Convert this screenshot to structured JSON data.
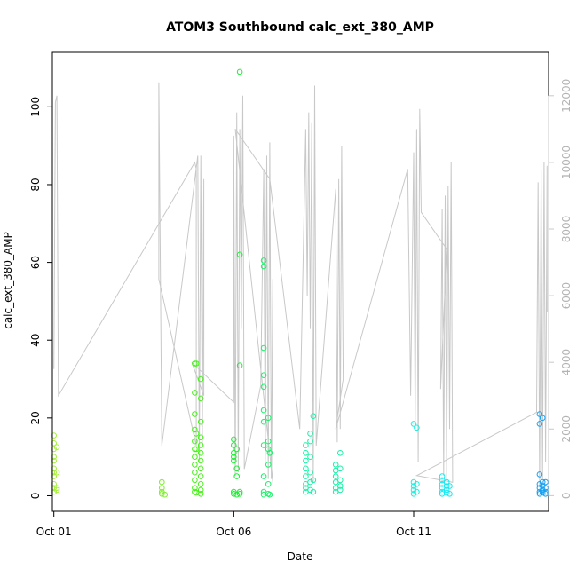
{
  "chart_data": {
    "type": "scatter",
    "title": "ATOM3 Southbound calc_ext_380_AMP",
    "xlabel": "Date",
    "ylabel": "calc_ext_380_AMP",
    "x_axis_type": "date",
    "xlim": [
      "2012-09-30T23:00",
      "2012-10-14T18:00"
    ],
    "x_ticks": [
      {
        "value": "2012-10-01T00:00",
        "label": "Oct 01"
      },
      {
        "value": "2012-10-06T00:00",
        "label": "Oct 06"
      },
      {
        "value": "2012-10-11T00:00",
        "label": "Oct 11"
      }
    ],
    "ylim": [
      -4,
      114
    ],
    "y_ticks": [
      0,
      20,
      40,
      60,
      80,
      100
    ],
    "y2lim": [
      -470,
      13300
    ],
    "y2_ticks": [
      0,
      2000,
      4000,
      6000,
      8000,
      10000,
      12000
    ],
    "y2_color": "#c8c8c8",
    "line_color": "#c8c8c8",
    "grid": false,
    "legend": "none",
    "point_colors": [
      "#a8f03c",
      "#7cf02a",
      "#46f018",
      "#18f030",
      "#18f068",
      "#18f0a8",
      "#18f0e0",
      "#18e8f0",
      "#18a0f0"
    ],
    "points": [
      {
        "x": "2012-10-01T00:00",
        "y": 15.5,
        "c": 0
      },
      {
        "x": "2012-10-01T00:00",
        "y": 13.5,
        "c": 0
      },
      {
        "x": "2012-10-01T00:00",
        "y": 12,
        "c": 0
      },
      {
        "x": "2012-10-01T00:00",
        "y": 10,
        "c": 0
      },
      {
        "x": "2012-10-01T00:00",
        "y": 9,
        "c": 0
      },
      {
        "x": "2012-10-01T00:00",
        "y": 7,
        "c": 0
      },
      {
        "x": "2012-10-01T00:00",
        "y": 6,
        "c": 0
      },
      {
        "x": "2012-10-01T00:00",
        "y": 5,
        "c": 0
      },
      {
        "x": "2012-10-01T00:00",
        "y": 3,
        "c": 0
      },
      {
        "x": "2012-10-01T00:00",
        "y": 2,
        "c": 0
      },
      {
        "x": "2012-10-01T00:00",
        "y": 1,
        "c": 0
      },
      {
        "x": "2012-10-01T02:00",
        "y": 12.5,
        "c": 0
      },
      {
        "x": "2012-10-01T02:00",
        "y": 6,
        "c": 0
      },
      {
        "x": "2012-10-01T02:00",
        "y": 2,
        "c": 0
      },
      {
        "x": "2012-10-01T02:00",
        "y": 1.5,
        "c": 0
      },
      {
        "x": "2012-10-04T00:00",
        "y": 3.5,
        "c": 1
      },
      {
        "x": "2012-10-04T00:00",
        "y": 2,
        "c": 1
      },
      {
        "x": "2012-10-04T00:00",
        "y": 1,
        "c": 1
      },
      {
        "x": "2012-10-04T00:00",
        "y": 0.5,
        "c": 1
      },
      {
        "x": "2012-10-04T02:00",
        "y": 0.3,
        "c": 1
      },
      {
        "x": "2012-10-04T22:00",
        "y": 34,
        "c": 2
      },
      {
        "x": "2012-10-04T22:00",
        "y": 26.5,
        "c": 2
      },
      {
        "x": "2012-10-04T22:00",
        "y": 21,
        "c": 2
      },
      {
        "x": "2012-10-04T22:00",
        "y": 17,
        "c": 2
      },
      {
        "x": "2012-10-04T22:00",
        "y": 14,
        "c": 2
      },
      {
        "x": "2012-10-04T22:00",
        "y": 12,
        "c": 2
      },
      {
        "x": "2012-10-04T22:00",
        "y": 10,
        "c": 2
      },
      {
        "x": "2012-10-04T22:00",
        "y": 8,
        "c": 2
      },
      {
        "x": "2012-10-04T22:00",
        "y": 6,
        "c": 2
      },
      {
        "x": "2012-10-04T22:00",
        "y": 4,
        "c": 2
      },
      {
        "x": "2012-10-04T22:00",
        "y": 2,
        "c": 2
      },
      {
        "x": "2012-10-04T22:00",
        "y": 1,
        "c": 2
      },
      {
        "x": "2012-10-05T02:00",
        "y": 30,
        "c": 2
      },
      {
        "x": "2012-10-05T02:00",
        "y": 25,
        "c": 2
      },
      {
        "x": "2012-10-05T02:00",
        "y": 19,
        "c": 2
      },
      {
        "x": "2012-10-05T02:00",
        "y": 15,
        "c": 2
      },
      {
        "x": "2012-10-05T02:00",
        "y": 13,
        "c": 2
      },
      {
        "x": "2012-10-05T02:00",
        "y": 11,
        "c": 2
      },
      {
        "x": "2012-10-05T02:00",
        "y": 9,
        "c": 2
      },
      {
        "x": "2012-10-05T02:00",
        "y": 7,
        "c": 2
      },
      {
        "x": "2012-10-05T02:00",
        "y": 5,
        "c": 2
      },
      {
        "x": "2012-10-05T02:00",
        "y": 3,
        "c": 2
      },
      {
        "x": "2012-10-05T02:00",
        "y": 1.5,
        "c": 2
      },
      {
        "x": "2012-10-05T02:00",
        "y": 0.5,
        "c": 2
      },
      {
        "x": "2012-10-04T23:00",
        "y": 34,
        "c": 2
      },
      {
        "x": "2012-10-04T23:00",
        "y": 16,
        "c": 2
      },
      {
        "x": "2012-10-04T23:00",
        "y": 12,
        "c": 2
      },
      {
        "x": "2012-10-04T23:00",
        "y": 0.8,
        "c": 2
      },
      {
        "x": "2012-10-06T00:00",
        "y": 14.5,
        "c": 3
      },
      {
        "x": "2012-10-06T00:00",
        "y": 13,
        "c": 3
      },
      {
        "x": "2012-10-06T00:00",
        "y": 11,
        "c": 3
      },
      {
        "x": "2012-10-06T00:00",
        "y": 10,
        "c": 3
      },
      {
        "x": "2012-10-06T00:00",
        "y": 9,
        "c": 3
      },
      {
        "x": "2012-10-06T00:00",
        "y": 1,
        "c": 3
      },
      {
        "x": "2012-10-06T00:00",
        "y": 0.5,
        "c": 3
      },
      {
        "x": "2012-10-06T02:00",
        "y": 12,
        "c": 3
      },
      {
        "x": "2012-10-06T02:00",
        "y": 7,
        "c": 3
      },
      {
        "x": "2012-10-06T02:00",
        "y": 5,
        "c": 3
      },
      {
        "x": "2012-10-06T02:00",
        "y": 0.3,
        "c": 3
      },
      {
        "x": "2012-10-06T04:00",
        "y": 109,
        "c": 3
      },
      {
        "x": "2012-10-06T04:00",
        "y": 62,
        "c": 3
      },
      {
        "x": "2012-10-06T04:00",
        "y": 33.5,
        "c": 3
      },
      {
        "x": "2012-10-06T04:00",
        "y": 1,
        "c": 3
      },
      {
        "x": "2012-10-06T04:00",
        "y": 0.5,
        "c": 3
      },
      {
        "x": "2012-10-06T20:00",
        "y": 60.5,
        "c": 4
      },
      {
        "x": "2012-10-06T20:00",
        "y": 59,
        "c": 4
      },
      {
        "x": "2012-10-06T20:00",
        "y": 38,
        "c": 4
      },
      {
        "x": "2012-10-06T20:00",
        "y": 31,
        "c": 4
      },
      {
        "x": "2012-10-06T20:00",
        "y": 28,
        "c": 4
      },
      {
        "x": "2012-10-06T20:00",
        "y": 22,
        "c": 4
      },
      {
        "x": "2012-10-06T20:00",
        "y": 19,
        "c": 4
      },
      {
        "x": "2012-10-06T20:00",
        "y": 13,
        "c": 4
      },
      {
        "x": "2012-10-06T20:00",
        "y": 5,
        "c": 4
      },
      {
        "x": "2012-10-06T20:00",
        "y": 1,
        "c": 4
      },
      {
        "x": "2012-10-06T20:00",
        "y": 0.3,
        "c": 4
      },
      {
        "x": "2012-10-06T23:00",
        "y": 20,
        "c": 4
      },
      {
        "x": "2012-10-06T23:00",
        "y": 14,
        "c": 4
      },
      {
        "x": "2012-10-06T23:00",
        "y": 12,
        "c": 4
      },
      {
        "x": "2012-10-06T23:00",
        "y": 8,
        "c": 4
      },
      {
        "x": "2012-10-06T23:00",
        "y": 3,
        "c": 4
      },
      {
        "x": "2012-10-06T23:00",
        "y": 0.5,
        "c": 4
      },
      {
        "x": "2012-10-07T00:00",
        "y": 11,
        "c": 4
      },
      {
        "x": "2012-10-07T00:00",
        "y": 0.3,
        "c": 4
      },
      {
        "x": "2012-10-08T00:00",
        "y": 13,
        "c": 5
      },
      {
        "x": "2012-10-08T00:00",
        "y": 11,
        "c": 5
      },
      {
        "x": "2012-10-08T00:00",
        "y": 9,
        "c": 5
      },
      {
        "x": "2012-10-08T00:00",
        "y": 7,
        "c": 5
      },
      {
        "x": "2012-10-08T00:00",
        "y": 5,
        "c": 5
      },
      {
        "x": "2012-10-08T00:00",
        "y": 3,
        "c": 5
      },
      {
        "x": "2012-10-08T00:00",
        "y": 2,
        "c": 5
      },
      {
        "x": "2012-10-08T00:00",
        "y": 1,
        "c": 5
      },
      {
        "x": "2012-10-08T03:00",
        "y": 16,
        "c": 5
      },
      {
        "x": "2012-10-08T03:00",
        "y": 14,
        "c": 5
      },
      {
        "x": "2012-10-08T03:00",
        "y": 10,
        "c": 5
      },
      {
        "x": "2012-10-08T03:00",
        "y": 6,
        "c": 5
      },
      {
        "x": "2012-10-08T03:00",
        "y": 3.5,
        "c": 5
      },
      {
        "x": "2012-10-08T03:00",
        "y": 1.5,
        "c": 5
      },
      {
        "x": "2012-10-08T05:00",
        "y": 20.5,
        "c": 5
      },
      {
        "x": "2012-10-08T05:00",
        "y": 4,
        "c": 5
      },
      {
        "x": "2012-10-08T05:00",
        "y": 1,
        "c": 5
      },
      {
        "x": "2012-10-08T20:00",
        "y": 8,
        "c": 5
      },
      {
        "x": "2012-10-08T20:00",
        "y": 6.5,
        "c": 5
      },
      {
        "x": "2012-10-08T20:00",
        "y": 5,
        "c": 5
      },
      {
        "x": "2012-10-08T20:00",
        "y": 3.5,
        "c": 5
      },
      {
        "x": "2012-10-08T20:00",
        "y": 2,
        "c": 5
      },
      {
        "x": "2012-10-08T20:00",
        "y": 1,
        "c": 5
      },
      {
        "x": "2012-10-08T23:00",
        "y": 11,
        "c": 5
      },
      {
        "x": "2012-10-08T23:00",
        "y": 7,
        "c": 5
      },
      {
        "x": "2012-10-08T23:00",
        "y": 4,
        "c": 5
      },
      {
        "x": "2012-10-08T23:00",
        "y": 2.5,
        "c": 5
      },
      {
        "x": "2012-10-08T23:00",
        "y": 1.5,
        "c": 5
      },
      {
        "x": "2012-10-11T00:00",
        "y": 18.5,
        "c": 6
      },
      {
        "x": "2012-10-11T00:00",
        "y": 3.5,
        "c": 6
      },
      {
        "x": "2012-10-11T00:00",
        "y": 2.5,
        "c": 6
      },
      {
        "x": "2012-10-11T00:00",
        "y": 1.5,
        "c": 6
      },
      {
        "x": "2012-10-11T00:00",
        "y": 0.5,
        "c": 6
      },
      {
        "x": "2012-10-11T02:00",
        "y": 17.5,
        "c": 6
      },
      {
        "x": "2012-10-11T02:00",
        "y": 3,
        "c": 6
      },
      {
        "x": "2012-10-11T02:00",
        "y": 1,
        "c": 6
      },
      {
        "x": "2012-10-11T19:00",
        "y": 5,
        "c": 7
      },
      {
        "x": "2012-10-11T19:00",
        "y": 4,
        "c": 7
      },
      {
        "x": "2012-10-11T19:00",
        "y": 3,
        "c": 7
      },
      {
        "x": "2012-10-11T19:00",
        "y": 2,
        "c": 7
      },
      {
        "x": "2012-10-11T19:00",
        "y": 1,
        "c": 7
      },
      {
        "x": "2012-10-11T19:00",
        "y": 0.5,
        "c": 7
      },
      {
        "x": "2012-10-11T22:00",
        "y": 3.5,
        "c": 7
      },
      {
        "x": "2012-10-11T22:00",
        "y": 2.5,
        "c": 7
      },
      {
        "x": "2012-10-11T22:00",
        "y": 1.5,
        "c": 7
      },
      {
        "x": "2012-10-11T22:00",
        "y": 0.8,
        "c": 7
      },
      {
        "x": "2012-10-12T00:00",
        "y": 2.5,
        "c": 7
      },
      {
        "x": "2012-10-12T00:00",
        "y": 0.5,
        "c": 7
      },
      {
        "x": "2012-10-14T12:00",
        "y": 21,
        "c": 8
      },
      {
        "x": "2012-10-14T12:00",
        "y": 18.5,
        "c": 8
      },
      {
        "x": "2012-10-14T12:00",
        "y": 5.5,
        "c": 8
      },
      {
        "x": "2012-10-14T12:00",
        "y": 3,
        "c": 8
      },
      {
        "x": "2012-10-14T12:00",
        "y": 2,
        "c": 8
      },
      {
        "x": "2012-10-14T12:00",
        "y": 1,
        "c": 8
      },
      {
        "x": "2012-10-14T12:00",
        "y": 0.5,
        "c": 8
      },
      {
        "x": "2012-10-14T14:00",
        "y": 20,
        "c": 8
      },
      {
        "x": "2012-10-14T14:00",
        "y": 3.5,
        "c": 8
      },
      {
        "x": "2012-10-14T14:00",
        "y": 2.5,
        "c": 8
      },
      {
        "x": "2012-10-14T14:00",
        "y": 1.5,
        "c": 8
      },
      {
        "x": "2012-10-14T14:00",
        "y": 0.8,
        "c": 8
      },
      {
        "x": "2012-10-14T16:00",
        "y": 3.5,
        "c": 8
      },
      {
        "x": "2012-10-14T16:00",
        "y": 2,
        "c": 8
      },
      {
        "x": "2012-10-14T16:00",
        "y": 1,
        "c": 8
      },
      {
        "x": "2012-10-14T16:00",
        "y": 0.5,
        "c": 8
      }
    ],
    "secondary_series": [
      {
        "x": "2012-10-01T00:00",
        "y": 3800
      },
      {
        "x": "2012-10-01T01:00",
        "y": 11800
      },
      {
        "x": "2012-10-01T02:00",
        "y": 12000
      },
      {
        "x": "2012-10-01T03:00",
        "y": 3000
      },
      {
        "x": "2012-10-04T22:00",
        "y": 10000
      },
      {
        "x": "2012-10-04T23:00",
        "y": 9800
      },
      {
        "x": "2012-10-04T23:00",
        "y": 1500
      },
      {
        "x": "2012-10-03T22:00",
        "y": 6500
      },
      {
        "x": "2012-10-03T22:00",
        "y": 12400
      },
      {
        "x": "2012-10-04T00:00",
        "y": 1500
      },
      {
        "x": "2012-10-05T00:00",
        "y": 10200
      },
      {
        "x": "2012-10-05T01:00",
        "y": 1000
      },
      {
        "x": "2012-10-05T02:00",
        "y": 10200
      },
      {
        "x": "2012-10-05T03:00",
        "y": 1500
      },
      {
        "x": "2012-10-05T04:00",
        "y": 9500
      },
      {
        "x": "2012-10-05T04:00",
        "y": 3000
      },
      {
        "x": "2012-10-04T20:00",
        "y": 4000
      },
      {
        "x": "2012-10-06T00:00",
        "y": 2800
      },
      {
        "x": "2012-10-06T00:00",
        "y": 10800
      },
      {
        "x": "2012-10-06T01:00",
        "y": 600
      },
      {
        "x": "2012-10-06T02:00",
        "y": 11500
      },
      {
        "x": "2012-10-06T03:00",
        "y": 700
      },
      {
        "x": "2012-10-06T04:00",
        "y": 11000
      },
      {
        "x": "2012-10-06T05:00",
        "y": 5000
      },
      {
        "x": "2012-10-06T06:00",
        "y": 12000
      },
      {
        "x": "2012-10-06T07:00",
        "y": 800
      },
      {
        "x": "2012-10-06T18:00",
        "y": 3300
      },
      {
        "x": "2012-10-06T20:00",
        "y": 9800
      },
      {
        "x": "2012-10-06T21:00",
        "y": 1000
      },
      {
        "x": "2012-10-06T22:00",
        "y": 10200
      },
      {
        "x": "2012-10-06T23:00",
        "y": 500
      },
      {
        "x": "2012-10-07T00:00",
        "y": 10600
      },
      {
        "x": "2012-10-07T01:00",
        "y": 500
      },
      {
        "x": "2012-10-07T02:00",
        "y": 6500
      },
      {
        "x": "2012-10-07T02:00",
        "y": 400
      },
      {
        "x": "2012-10-06T01:00",
        "y": 11000
      },
      {
        "x": "2012-10-07T00:00",
        "y": 9500
      },
      {
        "x": "2012-10-07T20:00",
        "y": 2000
      },
      {
        "x": "2012-10-08T00:00",
        "y": 11000
      },
      {
        "x": "2012-10-08T01:00",
        "y": 6000
      },
      {
        "x": "2012-10-08T02:00",
        "y": 11500
      },
      {
        "x": "2012-10-08T03:00",
        "y": 5000
      },
      {
        "x": "2012-10-08T04:00",
        "y": 11200
      },
      {
        "x": "2012-10-08T05:00",
        "y": 400
      },
      {
        "x": "2012-10-08T06:00",
        "y": 12300
      },
      {
        "x": "2012-10-08T07:00",
        "y": 1500
      },
      {
        "x": "2012-10-08T20:00",
        "y": 9200
      },
      {
        "x": "2012-10-08T21:00",
        "y": 1600
      },
      {
        "x": "2012-10-08T22:00",
        "y": 9500
      },
      {
        "x": "2012-10-08T23:00",
        "y": 2000
      },
      {
        "x": "2012-10-09T00:00",
        "y": 10500
      },
      {
        "x": "2012-10-09T01:00",
        "y": 3500
      },
      {
        "x": "2012-10-08T20:00",
        "y": 2000
      },
      {
        "x": "2012-10-10T20:00",
        "y": 9800
      },
      {
        "x": "2012-10-10T22:00",
        "y": 3000
      },
      {
        "x": "2012-10-11T00:00",
        "y": 10300
      },
      {
        "x": "2012-10-11T01:00",
        "y": 2000
      },
      {
        "x": "2012-10-11T02:00",
        "y": 11000
      },
      {
        "x": "2012-10-11T03:00",
        "y": 1000
      },
      {
        "x": "2012-10-11T04:00",
        "y": 11600
      },
      {
        "x": "2012-10-11T05:00",
        "y": 8500
      },
      {
        "x": "2012-10-11T22:00",
        "y": 7400
      },
      {
        "x": "2012-10-11T18:00",
        "y": 3200
      },
      {
        "x": "2012-10-11T19:00",
        "y": 8600
      },
      {
        "x": "2012-10-11T20:00",
        "y": 600
      },
      {
        "x": "2012-10-11T21:00",
        "y": 9000
      },
      {
        "x": "2012-10-11T22:00",
        "y": 500
      },
      {
        "x": "2012-10-11T23:00",
        "y": 9300
      },
      {
        "x": "2012-10-12T00:00",
        "y": 2000
      },
      {
        "x": "2012-10-12T01:00",
        "y": 10000
      },
      {
        "x": "2012-10-12T02:00",
        "y": 400
      },
      {
        "x": "2012-10-11T02:00",
        "y": 600
      },
      {
        "x": "2012-10-14T10:00",
        "y": 2500
      },
      {
        "x": "2012-10-14T11:00",
        "y": 9400
      },
      {
        "x": "2012-10-14T12:00",
        "y": 300
      },
      {
        "x": "2012-10-14T13:00",
        "y": 9800
      },
      {
        "x": "2012-10-14T14:00",
        "y": 500
      },
      {
        "x": "2012-10-14T15:00",
        "y": 10000
      },
      {
        "x": "2012-10-14T16:00",
        "y": 1000
      },
      {
        "x": "2012-10-14T17:00",
        "y": 9900
      },
      {
        "x": "2012-10-14T17:00",
        "y": 5500
      }
    ]
  }
}
